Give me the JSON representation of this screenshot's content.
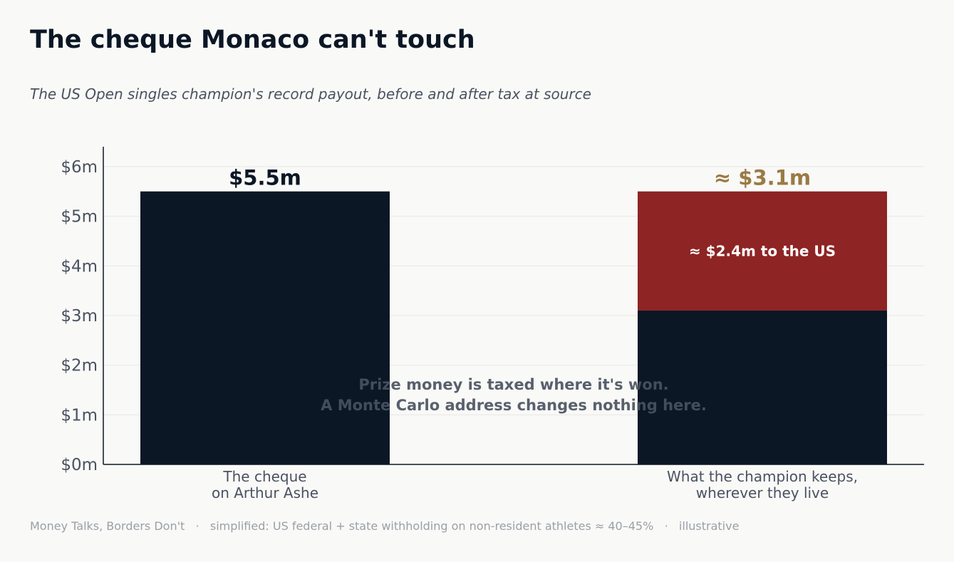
{
  "title": "The cheque Monaco can't touch",
  "subtitle": "The US Open singles champion's record payout, before and after tax at source",
  "footer": {
    "source": "Money Talks, Borders Don't",
    "note": "simplified: US federal + state withholding on non-resident athletes ≈ 40–45%",
    "tag": "illustrative",
    "separator": "·"
  },
  "colors": {
    "background": "#f9f9f7",
    "navy": "#0c1726",
    "tax_red": "#8e2424",
    "gold": "#9a7a45",
    "grid": "#e8e8e6",
    "axis_text": "#4a5261",
    "annotation": "#4a5261"
  },
  "chart_data": {
    "type": "bar",
    "stacked": true,
    "categories": [
      [
        "The cheque",
        "on Arthur Ashe"
      ],
      [
        "What the champion keeps,",
        "wherever they live"
      ]
    ],
    "series": [
      {
        "key": "kept",
        "values": [
          5.5,
          3.1
        ],
        "color": "#0c1726"
      },
      {
        "key": "tax",
        "values": [
          0,
          2.4
        ],
        "color": "#8e2424"
      }
    ],
    "bar_labels": [
      {
        "text": "$5.5m",
        "color": "#0c1726"
      },
      {
        "text": "≈ $3.1m",
        "color": "#9a7a45"
      }
    ],
    "segment_label": {
      "category": 1,
      "series": "tax",
      "text": "≈ $2.4m to the US"
    },
    "annotation": [
      "Prize money is taxed where it's won.",
      "A Monte Carlo address changes nothing here."
    ],
    "ylim": [
      0,
      6.4
    ],
    "yticks": [
      0,
      1,
      2,
      3,
      4,
      5,
      6
    ],
    "ytick_labels": [
      "$0m",
      "$1m",
      "$2m",
      "$3m",
      "$4m",
      "$5m",
      "$6m"
    ],
    "grid": true,
    "xlabel": "",
    "ylabel": ""
  }
}
